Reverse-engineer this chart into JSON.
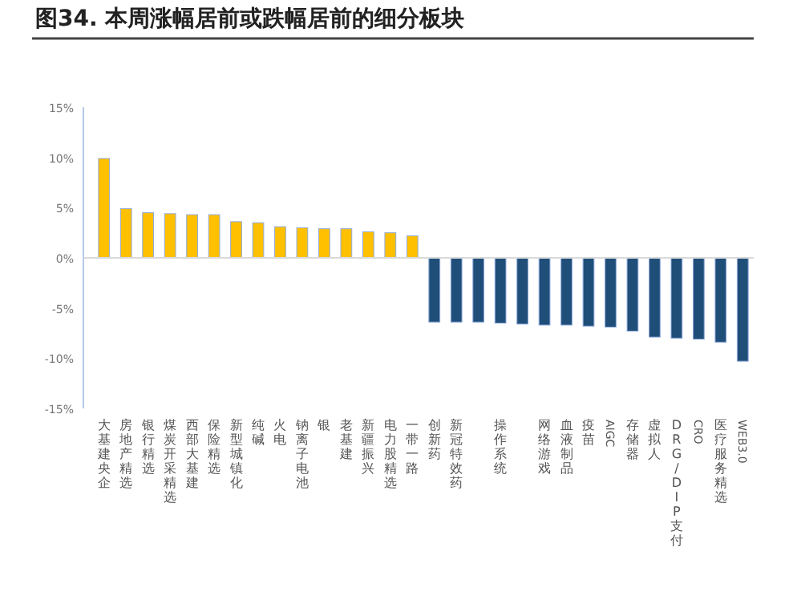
{
  "chart_data": {
    "type": "bar",
    "title": "图34. 本周涨幅居前或跌幅居前的细分板块",
    "categories": [
      "大基建央企",
      "房地产精选",
      "银行精选",
      "煤炭开采精选",
      "西部大基建",
      "保险精选",
      "新型城镇化",
      "纯碱",
      "火电",
      "钠离子电池",
      "银",
      "老基建",
      "新疆振兴",
      "电力股精选",
      "一带一路",
      "创新药",
      "新冠特效药",
      null,
      "操作系统",
      null,
      "网络游戏",
      "血液制品",
      "疫苗",
      "AIGC",
      "存储器",
      "虚拟人",
      "DRG/DIP支付",
      "CRO",
      "医疗服务精选",
      "WEB3.0"
    ],
    "values": [
      9.9,
      4.9,
      4.5,
      4.4,
      4.3,
      4.3,
      3.6,
      3.5,
      3.1,
      3.0,
      2.9,
      2.9,
      2.6,
      2.5,
      2.2,
      -6.4,
      -6.4,
      -6.4,
      -6.5,
      -6.6,
      -6.7,
      -6.7,
      -6.8,
      -6.9,
      -7.3,
      -7.9,
      -8.0,
      -8.1,
      -8.4,
      -10.3
    ],
    "colors": [
      "#ffc000",
      "#ffc000",
      "#ffc000",
      "#ffc000",
      "#ffc000",
      "#ffc000",
      "#ffc000",
      "#ffc000",
      "#ffc000",
      "#ffc000",
      "#ffc000",
      "#ffc000",
      "#ffc000",
      "#ffc000",
      "#ffc000",
      "#1f4e79",
      "#1f4e79",
      "#1f4e79",
      "#1f4e79",
      "#1f4e79",
      "#1f4e79",
      "#1f4e79",
      "#1f4e79",
      "#1f4e79",
      "#1f4e79",
      "#1f4e79",
      "#1f4e79",
      "#1f4e79",
      "#1f4e79",
      "#1f4e79"
    ],
    "ylim": [
      -15,
      15
    ],
    "yticks": [
      {
        "value": -15,
        "label": "-15%"
      },
      {
        "value": -10,
        "label": "-10%"
      },
      {
        "value": -5,
        "label": "-5%"
      },
      {
        "value": 0,
        "label": "0%"
      },
      {
        "value": 5,
        "label": "5%"
      },
      {
        "value": 10,
        "label": "10%"
      },
      {
        "value": 15,
        "label": "15%"
      }
    ],
    "grid": false,
    "ref_lines": [
      {
        "axis": "y",
        "value": 0,
        "color": "#d9d9d9"
      }
    ]
  }
}
